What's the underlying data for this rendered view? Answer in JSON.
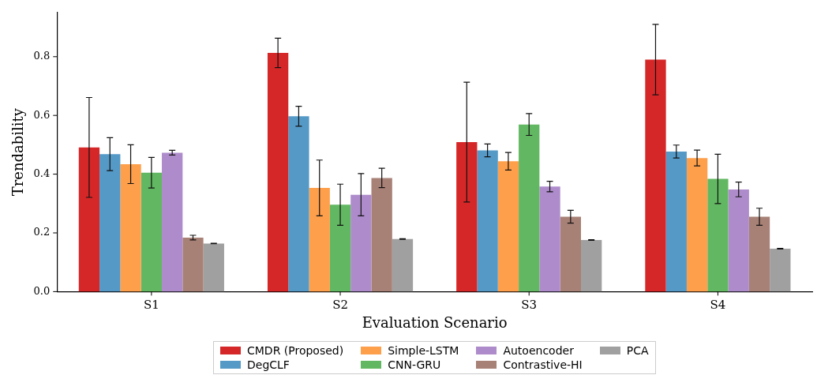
{
  "chart_data": {
    "type": "bar",
    "xlabel": "Evaluation Scenario",
    "ylabel": "Trendability",
    "categories": [
      "S1",
      "S2",
      "S3",
      "S4"
    ],
    "ylim": [
      0,
      0.95
    ],
    "yticks": [
      {
        "value": 0,
        "label": "0.0"
      },
      {
        "value": 0.2,
        "label": "0.2"
      },
      {
        "value": 0.4,
        "label": "0.4"
      },
      {
        "value": 0.6,
        "label": "0.6"
      },
      {
        "value": 0.8,
        "label": "0.8"
      }
    ],
    "legend": "bottom",
    "grid": false,
    "series": [
      {
        "name": "CMDR (Proposed)",
        "color": "#d62728",
        "values": [
          0.491,
          0.813,
          0.509,
          0.79
        ],
        "errors": [
          0.17,
          0.05,
          0.204,
          0.12
        ]
      },
      {
        "name": "DegCLF",
        "color": "#5599c7",
        "values": [
          0.468,
          0.597,
          0.481,
          0.477
        ],
        "errors": [
          0.056,
          0.034,
          0.022,
          0.022
        ]
      },
      {
        "name": "Simple-LSTM",
        "color": "#fe9f4c",
        "values": [
          0.434,
          0.353,
          0.444,
          0.455
        ],
        "errors": [
          0.066,
          0.095,
          0.03,
          0.027
        ]
      },
      {
        "name": "CNN-GRU",
        "color": "#62b862",
        "values": [
          0.405,
          0.296,
          0.569,
          0.384
        ],
        "errors": [
          0.052,
          0.07,
          0.037,
          0.084
        ]
      },
      {
        "name": "Autoencoder",
        "color": "#ae8ccb",
        "values": [
          0.473,
          0.33,
          0.358,
          0.348
        ],
        "errors": [
          0.008,
          0.072,
          0.018,
          0.025
        ]
      },
      {
        "name": "Contrastive-HI",
        "color": "#a88176",
        "values": [
          0.184,
          0.387,
          0.255,
          0.255
        ],
        "errors": [
          0.008,
          0.033,
          0.022,
          0.029
        ]
      },
      {
        "name": "PCA",
        "color": "#a0a0a0",
        "values": [
          0.164,
          0.179,
          0.176,
          0.146
        ],
        "errors": [
          0.001,
          0.001,
          0.001,
          0.001
        ]
      }
    ]
  }
}
